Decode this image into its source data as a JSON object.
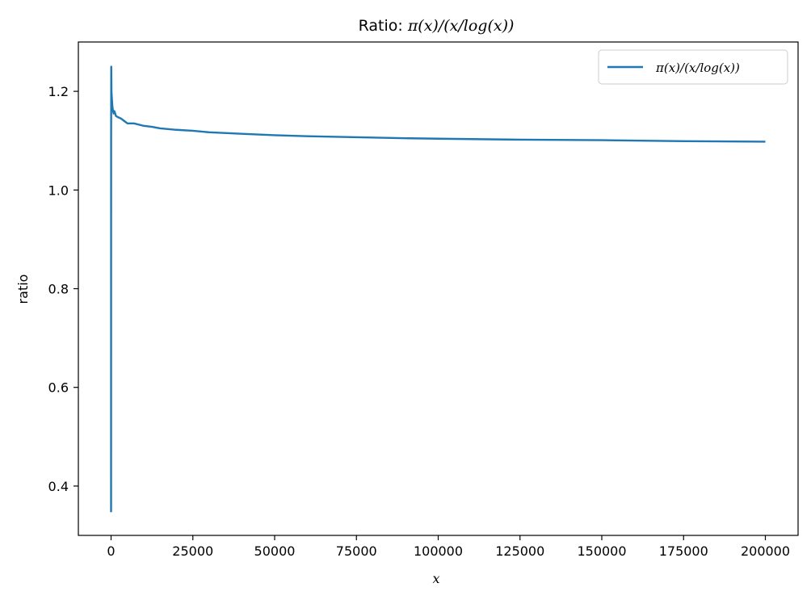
{
  "chart_data": {
    "type": "line",
    "title_prefix": "Ratio: ",
    "title_math": "π(x)/(x/log(x))",
    "xlabel": "x",
    "ylabel": "ratio",
    "xlim": [
      -10000,
      210000
    ],
    "ylim": [
      0.3,
      1.3
    ],
    "x_ticks": [
      0,
      25000,
      50000,
      75000,
      100000,
      125000,
      150000,
      175000,
      200000
    ],
    "x_tick_labels": [
      "0",
      "25000",
      "50000",
      "75000",
      "100000",
      "125000",
      "150000",
      "175000",
      "200000"
    ],
    "y_ticks": [
      0.4,
      0.6,
      0.8,
      1.0,
      1.2
    ],
    "y_tick_labels": [
      "0.4",
      "0.6",
      "0.8",
      "1.0",
      "1.2"
    ],
    "grid": false,
    "legend": {
      "placement": "top-right",
      "entries": [
        "π(x)/(x/log(x))"
      ]
    },
    "series": [
      {
        "name": "π(x)/(x/log(x))",
        "color": "#1f77b4",
        "x": [
          2,
          20,
          60,
          120,
          200,
          300,
          400,
          600,
          800,
          1000,
          1500,
          2000,
          3000,
          4000,
          5000,
          7000,
          10000,
          12500,
          15000,
          20000,
          25000,
          30000,
          40000,
          50000,
          60000,
          75000,
          90000,
          100000,
          125000,
          150000,
          175000,
          200000
        ],
        "values": [
          0.347,
          1.1,
          1.25,
          1.2,
          1.19,
          1.18,
          1.17,
          1.16,
          1.155,
          1.16,
          1.15,
          1.148,
          1.145,
          1.14,
          1.135,
          1.135,
          1.13,
          1.128,
          1.125,
          1.122,
          1.12,
          1.117,
          1.114,
          1.111,
          1.109,
          1.107,
          1.105,
          1.104,
          1.102,
          1.101,
          1.099,
          1.098
        ]
      }
    ]
  }
}
